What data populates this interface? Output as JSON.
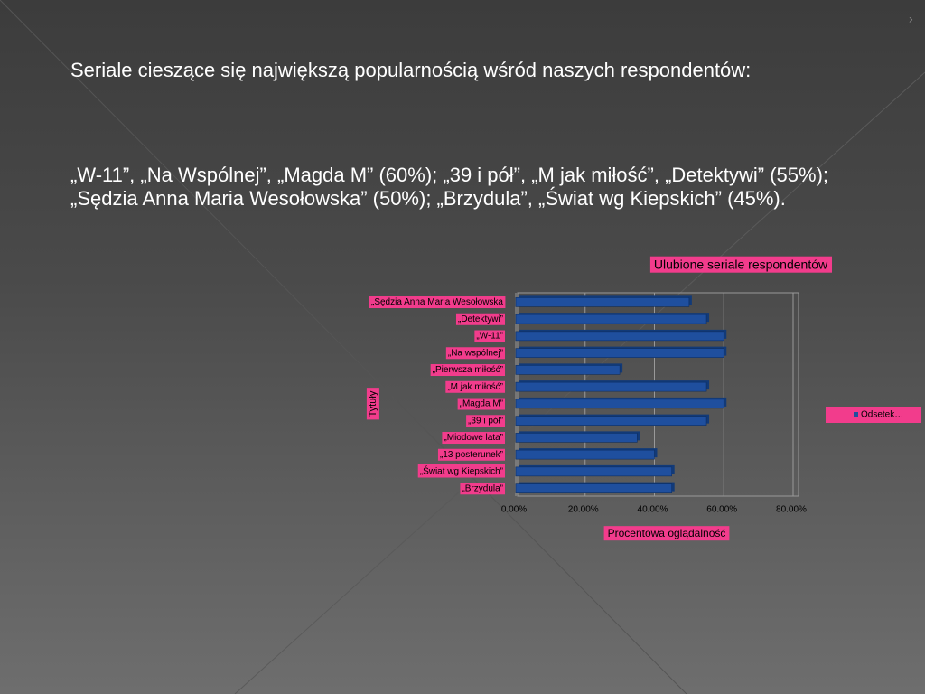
{
  "slide": {
    "heading": "Seriale cieszące się największą popularnością wśród naszych respondentów:",
    "summary": "„W-11”, „Na Wspólnej”, „Magda M” (60%); „39 i pół”, „M jak miłość”, „Detektywi” (55%); „Sędzia Anna Maria Wesołowska” (50%); „Brzydula”, „Świat wg Kiepskich” (45%)."
  },
  "chart_data": {
    "type": "barh",
    "title": "Ulubione seriale respondentów",
    "x_label": "Procentowa oglądalność",
    "y_label": "Tytuły",
    "categories": [
      "„Sędzia Anna Maria Wesołowska",
      "„Detektywi”",
      "„W-11”",
      "„Na wspólnej”",
      "„Pierwsza miłość”",
      "„M jak miłość”",
      "„Magda M”",
      "„39 i pół”",
      "„Miodowe lata”",
      "„13 posterunek”",
      "„Świat wg Kiepskich”",
      "„Brzydula”"
    ],
    "series": [
      {
        "name": "Odsetek…",
        "color": "#1f4f9e",
        "values": [
          50,
          55,
          60,
          60,
          30,
          55,
          60,
          55,
          35,
          40,
          45,
          45
        ]
      }
    ],
    "xlim": [
      0,
      80
    ],
    "xticks": [
      {
        "value": 0,
        "label": "0.00%"
      },
      {
        "value": 20,
        "label": "20.00%"
      },
      {
        "value": 40,
        "label": "40.00%"
      },
      {
        "value": 60,
        "label": "60.00%"
      },
      {
        "value": 80,
        "label": "80.00%"
      }
    ],
    "grid": true,
    "legend": "right"
  }
}
